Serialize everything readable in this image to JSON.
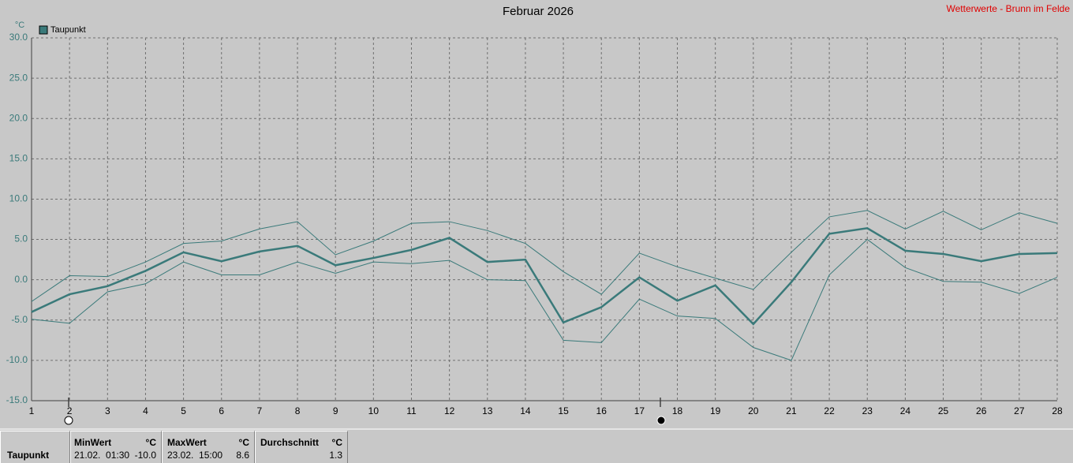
{
  "chart_data": {
    "type": "line",
    "title": "Februar 2026",
    "source": "Wetterwerte - Brunn im Felde",
    "y_unit": "°C",
    "x": [
      1,
      2,
      3,
      4,
      5,
      6,
      7,
      8,
      9,
      10,
      11,
      12,
      13,
      14,
      15,
      16,
      17,
      18,
      19,
      20,
      21,
      22,
      23,
      24,
      25,
      26,
      27,
      28
    ],
    "xlim": [
      1,
      28
    ],
    "xticks": [
      1,
      2,
      3,
      4,
      5,
      6,
      7,
      8,
      9,
      10,
      11,
      12,
      13,
      14,
      15,
      16,
      17,
      18,
      19,
      20,
      21,
      22,
      23,
      24,
      25,
      26,
      27,
      28
    ],
    "ylim": [
      -15,
      30
    ],
    "yticks": [
      {
        "value": -15,
        "label": "-15.0"
      },
      {
        "value": -10,
        "label": "-10.0"
      },
      {
        "value": -5,
        "label": "-5.0"
      },
      {
        "value": 0,
        "label": "0.0"
      },
      {
        "value": 5,
        "label": "5.0"
      },
      {
        "value": 10,
        "label": "10.0"
      },
      {
        "value": 15,
        "label": "15.0"
      },
      {
        "value": 20,
        "label": "20.0"
      },
      {
        "value": 25,
        "label": "25.0"
      },
      {
        "value": 30,
        "label": "30.0"
      }
    ],
    "grid": true,
    "series": [
      {
        "name": "Taupunkt",
        "color": "#3a7a7a",
        "values": [
          -4.0,
          -1.8,
          -0.8,
          1.1,
          3.4,
          2.3,
          3.5,
          4.2,
          1.8,
          2.7,
          3.7,
          5.2,
          2.2,
          2.5,
          -5.3,
          -3.4,
          0.3,
          -2.6,
          -0.7,
          -5.5,
          -0.3,
          5.7,
          6.4,
          3.6,
          3.2,
          2.3,
          3.2,
          3.3
        ]
      },
      {
        "color": "#3a7a7a",
        "values": [
          -2.7,
          0.5,
          0.4,
          2.2,
          4.5,
          4.8,
          6.3,
          7.2,
          3.1,
          4.8,
          7.0,
          7.2,
          6.1,
          4.5,
          1.0,
          -1.8,
          3.3,
          1.6,
          0.2,
          -1.2,
          3.4,
          7.8,
          8.6,
          6.3,
          8.5,
          6.2,
          8.3,
          7.0
        ]
      },
      {
        "color": "#3a7a7a",
        "values": [
          -4.9,
          -5.4,
          -1.5,
          -0.5,
          2.2,
          0.6,
          0.6,
          2.2,
          0.8,
          2.2,
          2.0,
          2.4,
          0.0,
          -0.1,
          -7.5,
          -7.8,
          -2.4,
          -4.5,
          -4.8,
          -8.4,
          -10.0,
          0.6,
          5.0,
          1.5,
          -0.2,
          -0.3,
          -1.7,
          0.3
        ]
      }
    ]
  },
  "stats": {
    "row_label": "Taupunkt",
    "min": {
      "label": "MinWert",
      "unit": "°C",
      "time": "21.02.  01:30",
      "value": "-10.0"
    },
    "max": {
      "label": "MaxWert",
      "unit": "°C",
      "time": "23.02.  15:00",
      "value": "8.6"
    },
    "avg": {
      "label": "Durchschnitt",
      "unit": "°C",
      "value": "1.3"
    }
  }
}
